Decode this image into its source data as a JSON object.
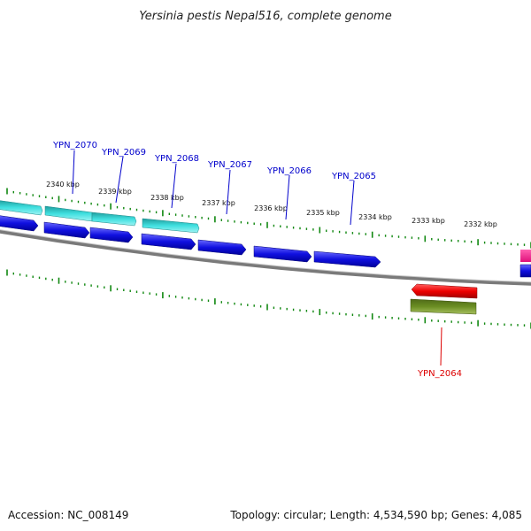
{
  "title": "Yersinia pestis Nepal516, complete genome",
  "footer": {
    "accession": "Accession: NC_008149",
    "summary": "Topology: circular; Length: 4,534,590 bp; Genes: 4,085"
  },
  "ticks": [
    "2340 kbp",
    "2339 kbp",
    "2338 kbp",
    "2337 kbp",
    "2336 kbp",
    "2335 kbp",
    "2334 kbp",
    "2333 kbp",
    "2332 kbp"
  ],
  "genes": [
    {
      "label": "YPN_2070",
      "color": "#0000cc"
    },
    {
      "label": "YPN_2069",
      "color": "#0000cc"
    },
    {
      "label": "YPN_2068",
      "color": "#0000cc"
    },
    {
      "label": "YPN_2067",
      "color": "#0000cc"
    },
    {
      "label": "YPN_2066",
      "color": "#0000cc"
    },
    {
      "label": "YPN_2065",
      "color": "#0000cc"
    },
    {
      "label": "YPN_2064",
      "color": "#dd0000"
    }
  ],
  "colors": {
    "forward_cds": "#1010e0",
    "forward_feature": "#30c8c8",
    "reverse_cds": "#ee1111",
    "reverse_feature": "#6b8e23",
    "edge_feature": "#ff1493",
    "backbone": "#888888",
    "tick": "#118811"
  }
}
